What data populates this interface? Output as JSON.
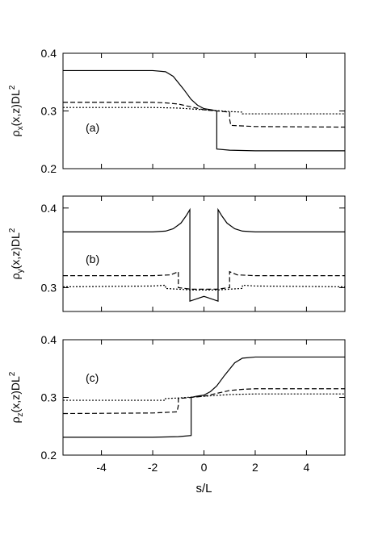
{
  "chart_data": [
    {
      "type": "line",
      "panel_label": "(a)",
      "ylabel": {
        "main": "ρ",
        "sub": "x",
        "rest": "(x,z)DL",
        "sup": "2"
      },
      "xlim": [
        -5.5,
        5.5
      ],
      "ylim": [
        0.2,
        0.4
      ],
      "yticks": [
        0.2,
        0.3,
        0.4
      ],
      "ytick_labels": [
        "0.2",
        "0.3",
        "0.4"
      ],
      "xticks": [
        -4,
        -2,
        0,
        2,
        4
      ],
      "xtick_labels": [],
      "series": [
        {
          "style": "solid",
          "points": [
            [
              -5.5,
              0.37
            ],
            [
              -2.0,
              0.37
            ],
            [
              -1.5,
              0.368
            ],
            [
              -1.2,
              0.36
            ],
            [
              -0.8,
              0.338
            ],
            [
              -0.5,
              0.32
            ],
            [
              -0.25,
              0.31
            ],
            [
              0.0,
              0.304
            ],
            [
              0.3,
              0.302
            ],
            [
              0.5,
              0.3
            ],
            [
              0.5,
              0.234
            ],
            [
              1.0,
              0.232
            ],
            [
              2.0,
              0.231
            ],
            [
              5.5,
              0.231
            ]
          ]
        },
        {
          "style": "dashed",
          "points": [
            [
              -5.5,
              0.315
            ],
            [
              -2.0,
              0.315
            ],
            [
              -1.5,
              0.314
            ],
            [
              -1.0,
              0.312
            ],
            [
              -0.5,
              0.307
            ],
            [
              0.0,
              0.302
            ],
            [
              0.5,
              0.3
            ],
            [
              1.0,
              0.298
            ],
            [
              1.0,
              0.286
            ],
            [
              1.05,
              0.275
            ],
            [
              2.0,
              0.273
            ],
            [
              5.5,
              0.272
            ]
          ]
        },
        {
          "style": "dotted",
          "points": [
            [
              -5.5,
              0.306
            ],
            [
              -2.0,
              0.306
            ],
            [
              -1.0,
              0.305
            ],
            [
              0.0,
              0.302
            ],
            [
              1.0,
              0.299
            ],
            [
              1.5,
              0.298
            ],
            [
              1.5,
              0.295
            ],
            [
              5.5,
              0.295
            ]
          ]
        }
      ]
    },
    {
      "type": "line",
      "panel_label": "(b)",
      "ylabel": {
        "main": "ρ",
        "sub": "y",
        "rest": "(x,z)DL",
        "sup": "2"
      },
      "xlim": [
        -5.5,
        5.5
      ],
      "ylim": [
        0.27,
        0.415
      ],
      "yticks": [
        0.3,
        0.4
      ],
      "ytick_labels": [
        "0.3",
        "0.4"
      ],
      "xticks": [
        -4,
        -2,
        0,
        2,
        4
      ],
      "xtick_labels": [],
      "series": [
        {
          "style": "solid",
          "points": [
            [
              -5.5,
              0.37
            ],
            [
              -2.0,
              0.37
            ],
            [
              -1.5,
              0.371
            ],
            [
              -1.2,
              0.374
            ],
            [
              -0.9,
              0.381
            ],
            [
              -0.7,
              0.39
            ],
            [
              -0.55,
              0.398
            ],
            [
              -0.55,
              0.283
            ],
            [
              0.0,
              0.289
            ],
            [
              0.55,
              0.283
            ],
            [
              0.55,
              0.398
            ],
            [
              0.7,
              0.39
            ],
            [
              0.9,
              0.381
            ],
            [
              1.2,
              0.374
            ],
            [
              1.5,
              0.371
            ],
            [
              2.0,
              0.37
            ],
            [
              5.5,
              0.37
            ]
          ]
        },
        {
          "style": "dashed",
          "points": [
            [
              -5.5,
              0.315
            ],
            [
              -2.0,
              0.315
            ],
            [
              -1.3,
              0.316
            ],
            [
              -1.0,
              0.32
            ],
            [
              -1.0,
              0.3
            ],
            [
              -0.5,
              0.298
            ],
            [
              0.5,
              0.298
            ],
            [
              1.0,
              0.3
            ],
            [
              1.0,
              0.32
            ],
            [
              1.3,
              0.316
            ],
            [
              2.0,
              0.315
            ],
            [
              5.5,
              0.315
            ]
          ]
        },
        {
          "style": "dotted",
          "points": [
            [
              -5.5,
              0.301
            ],
            [
              -2.0,
              0.302
            ],
            [
              -1.5,
              0.303
            ],
            [
              -1.5,
              0.299
            ],
            [
              -0.5,
              0.297
            ],
            [
              0.5,
              0.297
            ],
            [
              1.5,
              0.299
            ],
            [
              1.5,
              0.303
            ],
            [
              2.0,
              0.302
            ],
            [
              5.5,
              0.301
            ]
          ]
        }
      ]
    },
    {
      "type": "line",
      "panel_label": "(c)",
      "ylabel": {
        "main": "ρ",
        "sub": "z",
        "rest": "(x,z)DL",
        "sup": "2"
      },
      "xlabel": "s/L",
      "xlim": [
        -5.5,
        5.5
      ],
      "ylim": [
        0.2,
        0.4
      ],
      "yticks": [
        0.2,
        0.3,
        0.4
      ],
      "ytick_labels": [
        "0.2",
        "0.3",
        "0.4"
      ],
      "xticks": [
        -4,
        -2,
        0,
        2,
        4
      ],
      "xtick_labels": [
        "-4",
        "-2",
        "0",
        "2",
        "4"
      ],
      "series": [
        {
          "style": "solid",
          "points": [
            [
              -5.5,
              0.231
            ],
            [
              -2.0,
              0.231
            ],
            [
              -1.0,
              0.232
            ],
            [
              -0.5,
              0.234
            ],
            [
              -0.5,
              0.3
            ],
            [
              -0.3,
              0.302
            ],
            [
              0.0,
              0.304
            ],
            [
              0.25,
              0.31
            ],
            [
              0.5,
              0.32
            ],
            [
              0.8,
              0.338
            ],
            [
              1.2,
              0.36
            ],
            [
              1.5,
              0.368
            ],
            [
              2.0,
              0.37
            ],
            [
              5.5,
              0.37
            ]
          ]
        },
        {
          "style": "dashed",
          "points": [
            [
              -5.5,
              0.272
            ],
            [
              -2.0,
              0.273
            ],
            [
              -1.05,
              0.275
            ],
            [
              -1.0,
              0.286
            ],
            [
              -1.0,
              0.298
            ],
            [
              -0.5,
              0.3
            ],
            [
              0.0,
              0.302
            ],
            [
              0.5,
              0.307
            ],
            [
              1.0,
              0.312
            ],
            [
              1.5,
              0.314
            ],
            [
              2.0,
              0.315
            ],
            [
              5.5,
              0.315
            ]
          ]
        },
        {
          "style": "dotted",
          "points": [
            [
              -5.5,
              0.295
            ],
            [
              -1.5,
              0.295
            ],
            [
              -1.5,
              0.298
            ],
            [
              -1.0,
              0.299
            ],
            [
              0.0,
              0.302
            ],
            [
              1.0,
              0.305
            ],
            [
              2.0,
              0.306
            ],
            [
              5.5,
              0.306
            ]
          ]
        }
      ]
    }
  ]
}
